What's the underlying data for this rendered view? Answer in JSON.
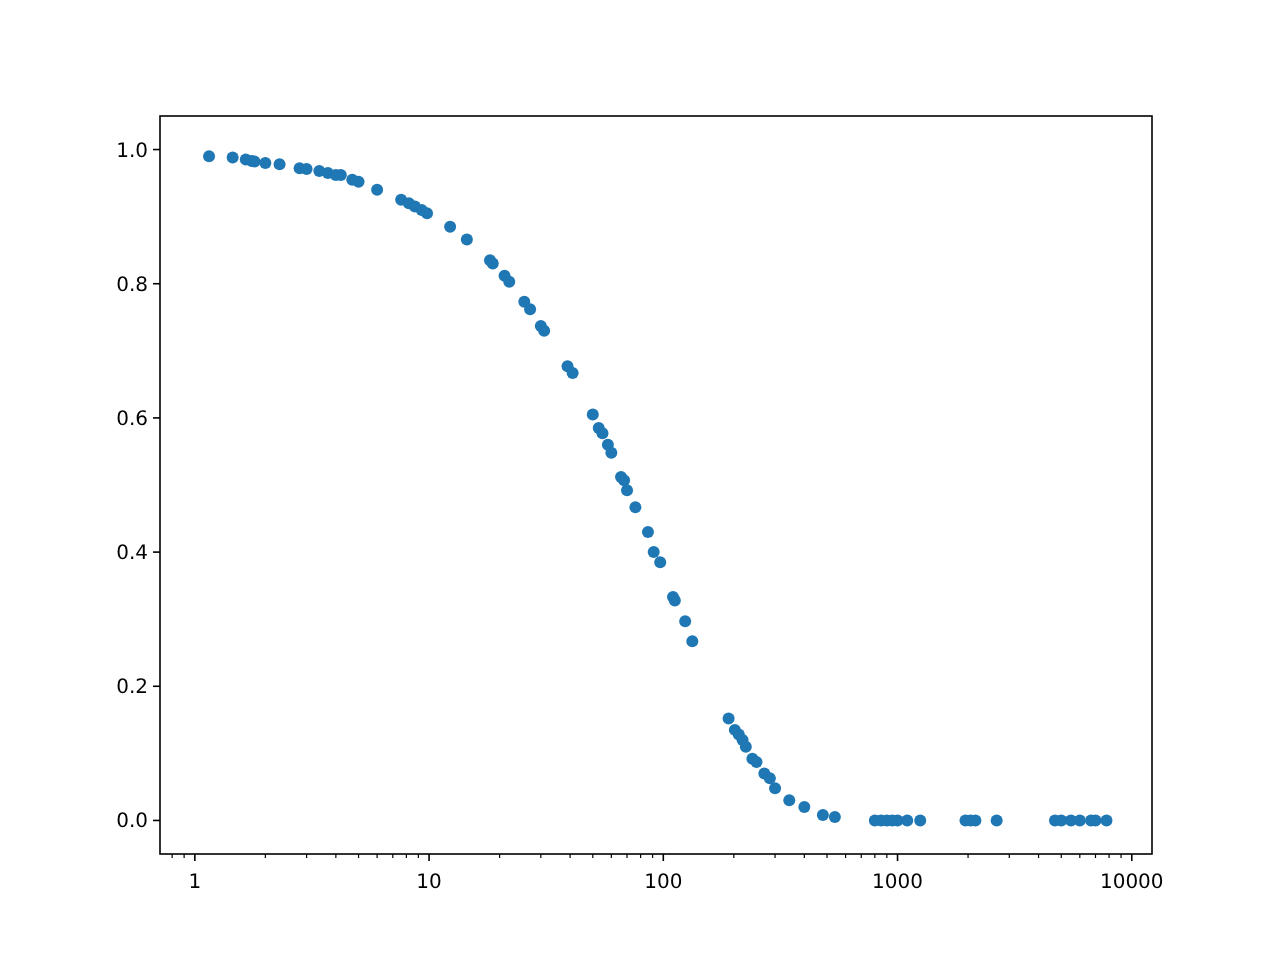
{
  "chart_data": {
    "type": "scatter",
    "log": "x",
    "marker": "circle",
    "grid": false,
    "xlim": [
      0.71,
      12200
    ],
    "ylim": [
      -0.05,
      1.05
    ],
    "xticks": [
      {
        "value": 0.8,
        "label": null
      },
      {
        "value": 0.9,
        "label": null
      },
      1,
      {
        "value": 2,
        "label": null
      },
      {
        "value": 3,
        "label": null
      },
      {
        "value": 4,
        "label": null
      },
      {
        "value": 5,
        "label": null
      },
      {
        "value": 6,
        "label": null
      },
      {
        "value": 7,
        "label": null
      },
      {
        "value": 8,
        "label": null
      },
      {
        "value": 9,
        "label": null
      },
      10,
      {
        "value": 20,
        "label": null
      },
      {
        "value": 30,
        "label": null
      },
      {
        "value": 40,
        "label": null
      },
      {
        "value": 50,
        "label": null
      },
      {
        "value": 60,
        "label": null
      },
      {
        "value": 70,
        "label": null
      },
      {
        "value": 80,
        "label": null
      },
      {
        "value": 90,
        "label": null
      },
      100,
      {
        "value": 200,
        "label": null
      },
      {
        "value": 300,
        "label": null
      },
      {
        "value": 400,
        "label": null
      },
      {
        "value": 500,
        "label": null
      },
      {
        "value": 600,
        "label": null
      },
      {
        "value": 700,
        "label": null
      },
      {
        "value": 800,
        "label": null
      },
      {
        "value": 900,
        "label": null
      },
      1000,
      {
        "value": 2000,
        "label": null
      },
      {
        "value": 3000,
        "label": null
      },
      {
        "value": 4000,
        "label": null
      },
      {
        "value": 5000,
        "label": null
      },
      {
        "value": 6000,
        "label": null
      },
      {
        "value": 7000,
        "label": null
      },
      {
        "value": 8000,
        "label": null
      },
      {
        "value": 9000,
        "label": null
      },
      10000
    ],
    "yticks": [
      {
        "value": 0,
        "label": "0.0"
      },
      0.2,
      0.4,
      0.6,
      0.8,
      {
        "value": 1,
        "label": "1.0"
      }
    ],
    "series": [
      {
        "color": "#1f77b4",
        "x": [
          1.15,
          1.45,
          1.65,
          1.75,
          1.8,
          2.0,
          2.3,
          2.8,
          3.0,
          3.4,
          3.7,
          4.0,
          4.2,
          4.7,
          5.0,
          6.0,
          7.6,
          8.2,
          8.7,
          9.3,
          9.8,
          12.3,
          14.5,
          18.2,
          18.7,
          21,
          22,
          25.5,
          27,
          30,
          31,
          39,
          41,
          50,
          53,
          55,
          58,
          60,
          66,
          68,
          70,
          76,
          86,
          91,
          97,
          110,
          112,
          124,
          133,
          190,
          202,
          210,
          218,
          225,
          240,
          250,
          270,
          285,
          300,
          345,
          400,
          480,
          540,
          800,
          850,
          900,
          950,
          1000,
          1100,
          1250,
          1950,
          2050,
          2150,
          2650,
          4700,
          5000,
          5500,
          6000,
          6700,
          7000,
          7800
        ],
        "values": [
          0.99,
          0.988,
          0.985,
          0.983,
          0.982,
          0.98,
          0.978,
          0.972,
          0.971,
          0.968,
          0.965,
          0.962,
          0.962,
          0.955,
          0.952,
          0.94,
          0.925,
          0.92,
          0.915,
          0.91,
          0.905,
          0.885,
          0.866,
          0.835,
          0.83,
          0.812,
          0.803,
          0.773,
          0.762,
          0.737,
          0.73,
          0.677,
          0.667,
          0.605,
          0.585,
          0.577,
          0.56,
          0.548,
          0.512,
          0.507,
          0.492,
          0.467,
          0.43,
          0.4,
          0.385,
          0.333,
          0.328,
          0.297,
          0.267,
          0.152,
          0.135,
          0.128,
          0.12,
          0.11,
          0.092,
          0.087,
          0.07,
          0.063,
          0.048,
          0.03,
          0.02,
          0.008,
          0.005,
          0,
          0,
          0,
          0,
          0,
          0,
          0,
          0,
          0,
          0,
          0,
          0,
          0,
          0,
          0,
          0,
          0,
          0
        ]
      }
    ]
  }
}
